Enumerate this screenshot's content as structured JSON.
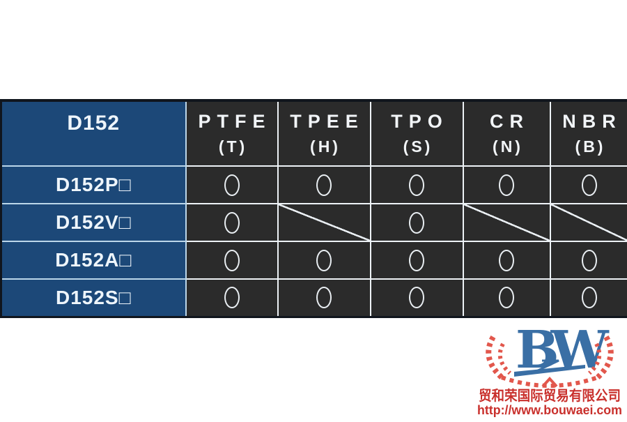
{
  "table": {
    "corner_label": "D152",
    "columns": [
      {
        "name": "PTFE",
        "code": "(T)"
      },
      {
        "name": "TPEE",
        "code": "(H)"
      },
      {
        "name": "TPO",
        "code": "(S)"
      },
      {
        "name": "CR",
        "code": "(N)"
      },
      {
        "name": "NBR",
        "code": "(B)"
      }
    ],
    "rows": [
      {
        "label": "D152P□",
        "cells": [
          "circle",
          "circle",
          "circle",
          "circle",
          "circle"
        ]
      },
      {
        "label": "D152V□",
        "cells": [
          "circle",
          "slash",
          "circle",
          "slash",
          "slash"
        ]
      },
      {
        "label": "D152A□",
        "cells": [
          "circle",
          "circle",
          "circle",
          "circle",
          "circle"
        ]
      },
      {
        "label": "D152S□",
        "cells": [
          "circle",
          "circle",
          "circle",
          "circle",
          "circle"
        ]
      }
    ],
    "symbols": {
      "circle": "○",
      "slash": "╱"
    }
  },
  "logo": {
    "monogram": "BW",
    "company_name": "贸和荣国际贸易有限公司",
    "website": "http://www.bouwaei.com"
  },
  "colors": {
    "header_blue": "#1c4878",
    "cell_dark": "#2b2b2b",
    "border_light": "#eef3f7",
    "outer_dark": "#10151d",
    "logo_blue": "#3a6fa5",
    "wreath_red": "#e2574c",
    "text_red": "#c9302c"
  }
}
